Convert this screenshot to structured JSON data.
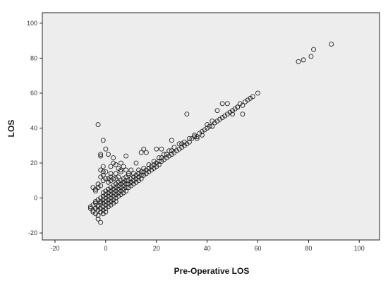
{
  "chart_data": {
    "type": "scatter",
    "xlabel": "Pre-Operative LOS",
    "ylabel": "LOS",
    "xlim": [
      -25,
      108
    ],
    "ylim": [
      -24,
      106
    ],
    "xticks": [
      -20,
      0,
      20,
      40,
      60,
      80,
      100
    ],
    "yticks": [
      -20,
      0,
      20,
      40,
      60,
      80,
      100
    ],
    "tick_labels_x": [
      "-20",
      "0",
      "20",
      "40",
      "60",
      "80",
      "100"
    ],
    "tick_labels_y": [
      "-20",
      "0",
      "20",
      "40",
      "60",
      "80",
      "100"
    ],
    "grid": false,
    "marker": "open-circle",
    "colors": {
      "plot_bg": "#ededed",
      "marker": "#222222",
      "frame": "#222222"
    },
    "series": [
      {
        "points": [
          [
            -6,
            -5
          ],
          [
            -6,
            -6
          ],
          [
            -5,
            -7
          ],
          [
            -5,
            -8
          ],
          [
            -5,
            -4
          ],
          [
            -4,
            -6
          ],
          [
            -4,
            -9
          ],
          [
            -4,
            -3
          ],
          [
            -4,
            -2
          ],
          [
            -3,
            -5
          ],
          [
            -3,
            -7
          ],
          [
            -3,
            -10
          ],
          [
            -3,
            -4
          ],
          [
            -3,
            -1
          ],
          [
            -3,
            -12
          ],
          [
            -2,
            -6
          ],
          [
            -2,
            -3
          ],
          [
            -2,
            -8
          ],
          [
            -2,
            -14
          ],
          [
            -2,
            -2
          ],
          [
            -2,
            0
          ],
          [
            -1,
            -5
          ],
          [
            -1,
            -3
          ],
          [
            -1,
            -1
          ],
          [
            -1,
            1
          ],
          [
            -1,
            -7
          ],
          [
            -1,
            3
          ],
          [
            -1,
            -9
          ],
          [
            0,
            -4
          ],
          [
            0,
            -2
          ],
          [
            0,
            0
          ],
          [
            0,
            2
          ],
          [
            0,
            -6
          ],
          [
            0,
            -8
          ],
          [
            0,
            4
          ],
          [
            1,
            -3
          ],
          [
            1,
            -1
          ],
          [
            1,
            1
          ],
          [
            1,
            3
          ],
          [
            1,
            -5
          ],
          [
            1,
            5
          ],
          [
            2,
            -2
          ],
          [
            2,
            0
          ],
          [
            2,
            2
          ],
          [
            2,
            4
          ],
          [
            2,
            -4
          ],
          [
            2,
            6
          ],
          [
            3,
            -1
          ],
          [
            3,
            1
          ],
          [
            3,
            3
          ],
          [
            3,
            5
          ],
          [
            3,
            -3
          ],
          [
            3,
            7
          ],
          [
            4,
            0
          ],
          [
            4,
            2
          ],
          [
            4,
            4
          ],
          [
            4,
            6
          ],
          [
            4,
            -2
          ],
          [
            4,
            8
          ],
          [
            5,
            1
          ],
          [
            5,
            3
          ],
          [
            5,
            5
          ],
          [
            5,
            7
          ],
          [
            5,
            9
          ],
          [
            6,
            2
          ],
          [
            6,
            4
          ],
          [
            6,
            6
          ],
          [
            6,
            8
          ],
          [
            7,
            3
          ],
          [
            7,
            5
          ],
          [
            7,
            7
          ],
          [
            7,
            9
          ],
          [
            8,
            4
          ],
          [
            8,
            6
          ],
          [
            8,
            8
          ],
          [
            8,
            10
          ],
          [
            9,
            6
          ],
          [
            9,
            8
          ],
          [
            9,
            10
          ],
          [
            10,
            7
          ],
          [
            10,
            9
          ],
          [
            10,
            11
          ],
          [
            11,
            8
          ],
          [
            11,
            10
          ],
          [
            11,
            12
          ],
          [
            12,
            9
          ],
          [
            12,
            11
          ],
          [
            12,
            13
          ],
          [
            13,
            10
          ],
          [
            13,
            12
          ],
          [
            13,
            14
          ],
          [
            14,
            11
          ],
          [
            14,
            13
          ],
          [
            14,
            15
          ],
          [
            15,
            13
          ],
          [
            15,
            15
          ],
          [
            16,
            14
          ],
          [
            16,
            16
          ],
          [
            17,
            15
          ],
          [
            17,
            17
          ],
          [
            18,
            16
          ],
          [
            18,
            18
          ],
          [
            19,
            17
          ],
          [
            19,
            19
          ],
          [
            20,
            18
          ],
          [
            20,
            20
          ],
          [
            21,
            19
          ],
          [
            21,
            21
          ],
          [
            22,
            21
          ],
          [
            22,
            23
          ],
          [
            23,
            22
          ],
          [
            24,
            23
          ],
          [
            24,
            25
          ],
          [
            25,
            24
          ],
          [
            26,
            25
          ],
          [
            26,
            27
          ],
          [
            27,
            26
          ],
          [
            28,
            27
          ],
          [
            29,
            28
          ],
          [
            30,
            29
          ],
          [
            30,
            31
          ],
          [
            31,
            30
          ],
          [
            32,
            31
          ],
          [
            33,
            32
          ],
          [
            34,
            34
          ],
          [
            35,
            35
          ],
          [
            36,
            35
          ],
          [
            37,
            37
          ],
          [
            38,
            38
          ],
          [
            39,
            39
          ],
          [
            40,
            40
          ],
          [
            41,
            41
          ],
          [
            42,
            41
          ],
          [
            44,
            44
          ],
          [
            46,
            46
          ],
          [
            48,
            48
          ],
          [
            50,
            50
          ],
          [
            52,
            52
          ],
          [
            54,
            53
          ],
          [
            56,
            56
          ],
          [
            58,
            58
          ],
          [
            60,
            60
          ],
          [
            -2,
            7
          ],
          [
            -1,
            10
          ],
          [
            -2,
            12
          ],
          [
            -1,
            15
          ],
          [
            -1,
            18
          ],
          [
            -2,
            25
          ],
          [
            -1,
            33
          ],
          [
            -3,
            42
          ],
          [
            2,
            12
          ],
          [
            4,
            14
          ],
          [
            6,
            16
          ],
          [
            3,
            20
          ],
          [
            2,
            18
          ],
          [
            5,
            17
          ],
          [
            6,
            15
          ],
          [
            8,
            16
          ],
          [
            7,
            18
          ],
          [
            10,
            16
          ],
          [
            12,
            20
          ],
          [
            14,
            26
          ],
          [
            16,
            26
          ],
          [
            15,
            28
          ],
          [
            20,
            28
          ],
          [
            22,
            28
          ],
          [
            26,
            33
          ],
          [
            32,
            48
          ],
          [
            44,
            50
          ],
          [
            46,
            54
          ],
          [
            48,
            54
          ],
          [
            50,
            48
          ],
          [
            52,
            52
          ],
          [
            54,
            48
          ],
          [
            42,
            44
          ],
          [
            40,
            42
          ],
          [
            38,
            36
          ],
          [
            36,
            34
          ],
          [
            -5,
            6
          ],
          [
            -4,
            5
          ],
          [
            -3,
            8
          ],
          [
            -4,
            4
          ],
          [
            -3,
            6
          ],
          [
            -1,
            13
          ],
          [
            0,
            11
          ],
          [
            1,
            9
          ],
          [
            1,
            11
          ],
          [
            2,
            10
          ],
          [
            3,
            11
          ],
          [
            4,
            11
          ],
          [
            0,
            15
          ],
          [
            2,
            14
          ],
          [
            -2,
            16
          ],
          [
            4,
            19
          ],
          [
            6,
            20
          ],
          [
            3,
            23
          ],
          [
            1,
            25
          ],
          [
            0,
            28
          ],
          [
            -2,
            24
          ],
          [
            8,
            24
          ],
          [
            9,
            13
          ],
          [
            7,
            11
          ],
          [
            5,
            12
          ],
          [
            6,
            10
          ],
          [
            8,
            12
          ],
          [
            9,
            14
          ],
          [
            11,
            14
          ],
          [
            13,
            16
          ],
          [
            15,
            17
          ],
          [
            17,
            19
          ],
          [
            19,
            21
          ],
          [
            21,
            23
          ],
          [
            23,
            25
          ],
          [
            25,
            27
          ],
          [
            27,
            29
          ],
          [
            29,
            31
          ],
          [
            31,
            32
          ],
          [
            33,
            34
          ],
          [
            35,
            36
          ],
          [
            57,
            57
          ],
          [
            55,
            55
          ],
          [
            53,
            54
          ],
          [
            51,
            51
          ],
          [
            49,
            49
          ],
          [
            47,
            47
          ],
          [
            45,
            45
          ],
          [
            43,
            43
          ],
          [
            76,
            78
          ],
          [
            78,
            79
          ],
          [
            81,
            81
          ],
          [
            82,
            85
          ],
          [
            89,
            88
          ]
        ]
      }
    ]
  }
}
